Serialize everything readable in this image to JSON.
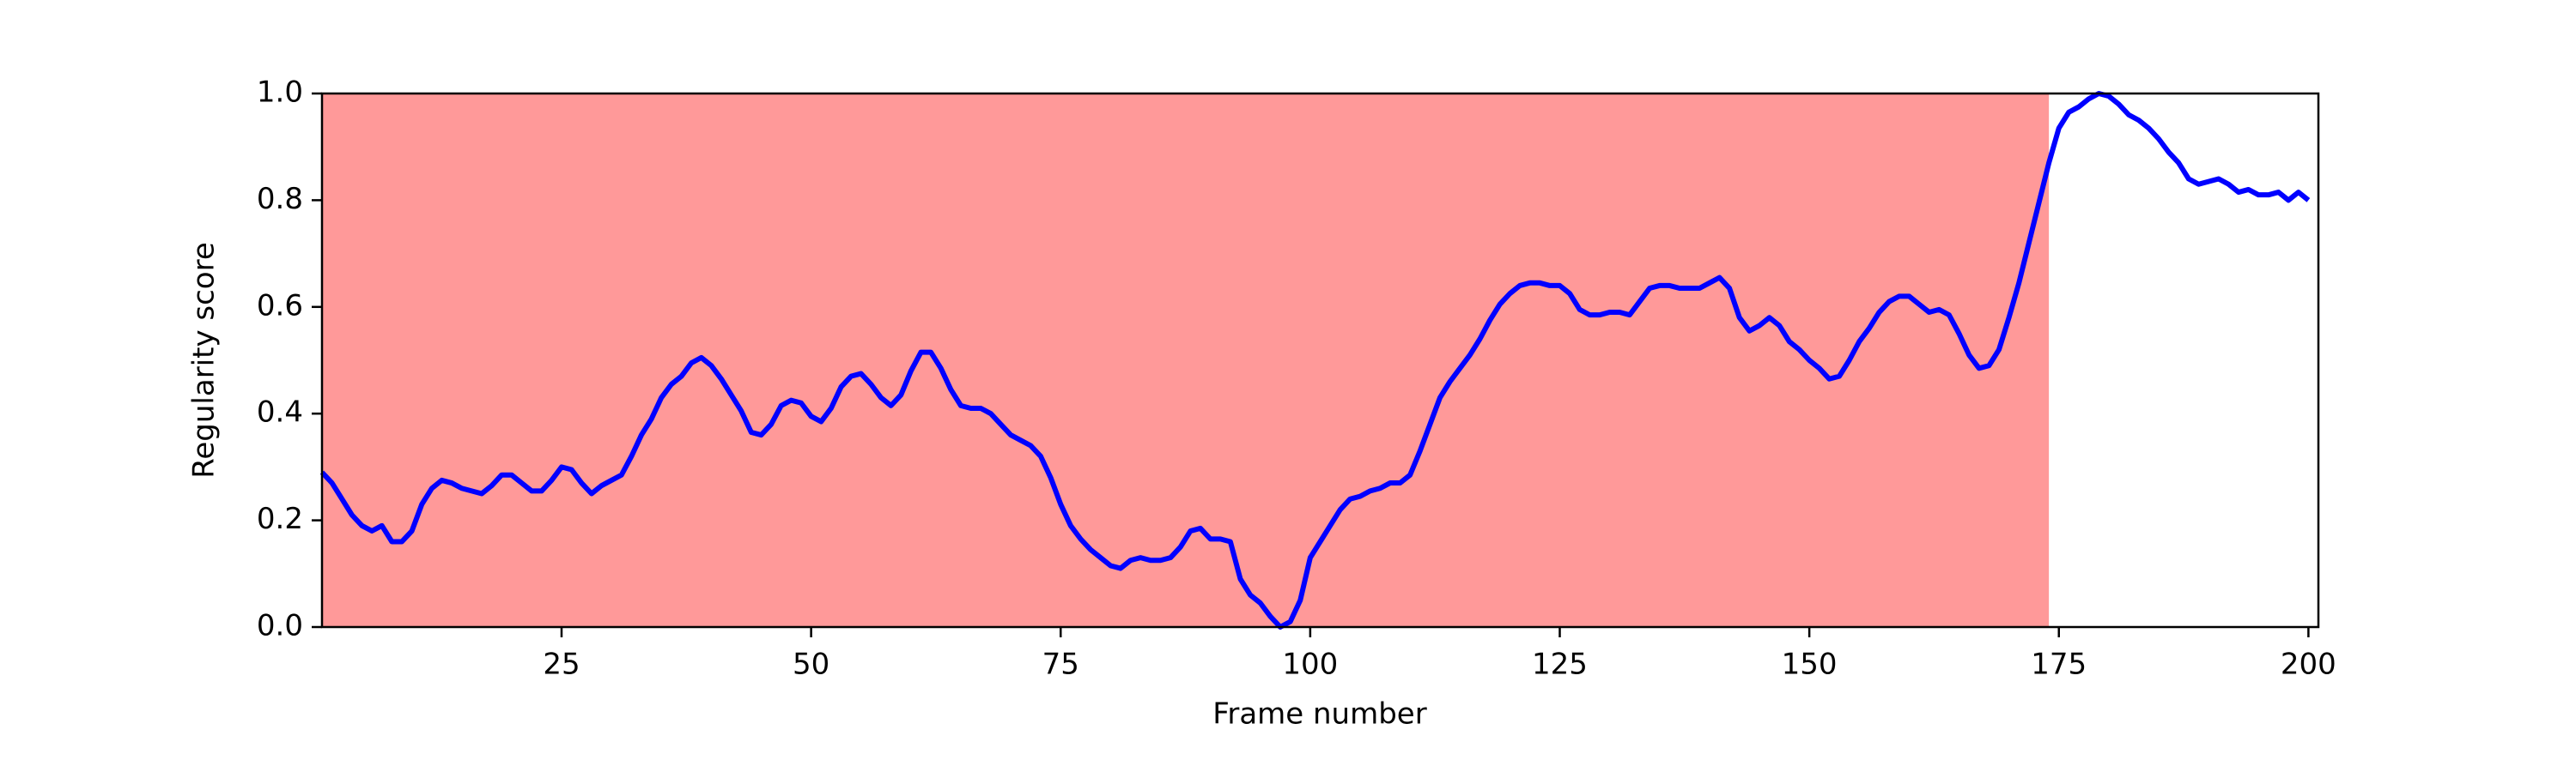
{
  "chart_data": {
    "type": "line",
    "xlabel": "Frame number",
    "ylabel": "Regularity score",
    "xlim": [
      1,
      201
    ],
    "ylim": [
      0,
      1
    ],
    "xticks": [
      25,
      50,
      75,
      100,
      125,
      150,
      175,
      200
    ],
    "yticks": [
      {
        "value": 0,
        "label": "0.0"
      },
      0.2,
      0.4,
      0.6,
      0.8,
      {
        "value": 1,
        "label": "1.0"
      }
    ],
    "spans": [
      {
        "start": 1,
        "end": 174,
        "color": "#ff9999"
      }
    ],
    "x": [
      1,
      2,
      3,
      4,
      5,
      6,
      7,
      8,
      9,
      10,
      11,
      12,
      13,
      14,
      15,
      16,
      17,
      18,
      19,
      20,
      21,
      22,
      23,
      24,
      25,
      26,
      27,
      28,
      29,
      30,
      31,
      32,
      33,
      34,
      35,
      36,
      37,
      38,
      39,
      40,
      41,
      42,
      43,
      44,
      45,
      46,
      47,
      48,
      49,
      50,
      51,
      52,
      53,
      54,
      55,
      56,
      57,
      58,
      59,
      60,
      61,
      62,
      63,
      64,
      65,
      66,
      67,
      68,
      69,
      70,
      71,
      72,
      73,
      74,
      75,
      76,
      77,
      78,
      79,
      80,
      81,
      82,
      83,
      84,
      85,
      86,
      87,
      88,
      89,
      90,
      91,
      92,
      93,
      94,
      95,
      96,
      97,
      98,
      99,
      100,
      101,
      102,
      103,
      104,
      105,
      106,
      107,
      108,
      109,
      110,
      111,
      112,
      113,
      114,
      115,
      116,
      117,
      118,
      119,
      120,
      121,
      122,
      123,
      124,
      125,
      126,
      127,
      128,
      129,
      130,
      131,
      132,
      133,
      134,
      135,
      136,
      137,
      138,
      139,
      140,
      141,
      142,
      143,
      144,
      145,
      146,
      147,
      148,
      149,
      150,
      151,
      152,
      153,
      154,
      155,
      156,
      157,
      158,
      159,
      160,
      161,
      162,
      163,
      164,
      165,
      166,
      167,
      168,
      169,
      170,
      171,
      172,
      173,
      174,
      175,
      176,
      177,
      178,
      179,
      180,
      181,
      182,
      183,
      184,
      185,
      186,
      187,
      188,
      189,
      190,
      191,
      192,
      193,
      194,
      195,
      196,
      197,
      198,
      199,
      200
    ],
    "series": [
      {
        "color": "#0000ff",
        "values": [
          0.29,
          0.27,
          0.24,
          0.21,
          0.19,
          0.18,
          0.19,
          0.16,
          0.16,
          0.18,
          0.23,
          0.26,
          0.275,
          0.27,
          0.26,
          0.255,
          0.25,
          0.265,
          0.285,
          0.285,
          0.27,
          0.255,
          0.255,
          0.275,
          0.3,
          0.295,
          0.27,
          0.25,
          0.265,
          0.275,
          0.285,
          0.32,
          0.36,
          0.39,
          0.43,
          0.455,
          0.47,
          0.495,
          0.505,
          0.49,
          0.465,
          0.435,
          0.405,
          0.365,
          0.36,
          0.38,
          0.415,
          0.425,
          0.42,
          0.395,
          0.385,
          0.41,
          0.45,
          0.47,
          0.475,
          0.455,
          0.43,
          0.415,
          0.435,
          0.48,
          0.515,
          0.515,
          0.485,
          0.445,
          0.415,
          0.41,
          0.41,
          0.4,
          0.38,
          0.36,
          0.35,
          0.34,
          0.32,
          0.28,
          0.23,
          0.19,
          0.165,
          0.145,
          0.13,
          0.115,
          0.11,
          0.125,
          0.13,
          0.125,
          0.125,
          0.13,
          0.15,
          0.18,
          0.185,
          0.165,
          0.165,
          0.16,
          0.09,
          0.06,
          0.045,
          0.02,
          0.0,
          0.01,
          0.05,
          0.13,
          0.16,
          0.19,
          0.22,
          0.24,
          0.245,
          0.255,
          0.26,
          0.27,
          0.27,
          0.285,
          0.33,
          0.38,
          0.43,
          0.46,
          0.485,
          0.51,
          0.54,
          0.575,
          0.605,
          0.625,
          0.64,
          0.645,
          0.645,
          0.64,
          0.64,
          0.625,
          0.595,
          0.585,
          0.585,
          0.59,
          0.59,
          0.585,
          0.61,
          0.635,
          0.64,
          0.64,
          0.635,
          0.635,
          0.635,
          0.645,
          0.655,
          0.635,
          0.58,
          0.555,
          0.565,
          0.58,
          0.565,
          0.535,
          0.52,
          0.5,
          0.485,
          0.465,
          0.47,
          0.5,
          0.535,
          0.56,
          0.59,
          0.61,
          0.62,
          0.62,
          0.605,
          0.59,
          0.595,
          0.585,
          0.55,
          0.51,
          0.485,
          0.49,
          0.52,
          0.58,
          0.645,
          0.72,
          0.795,
          0.87,
          0.935,
          0.965,
          0.975,
          0.99,
          1.0,
          0.995,
          0.98,
          0.96,
          0.95,
          0.935,
          0.915,
          0.89,
          0.87,
          0.84,
          0.83,
          0.835,
          0.84,
          0.83,
          0.815,
          0.82,
          0.81,
          0.81,
          0.815,
          0.8,
          0.815,
          0.8
        ]
      }
    ]
  }
}
